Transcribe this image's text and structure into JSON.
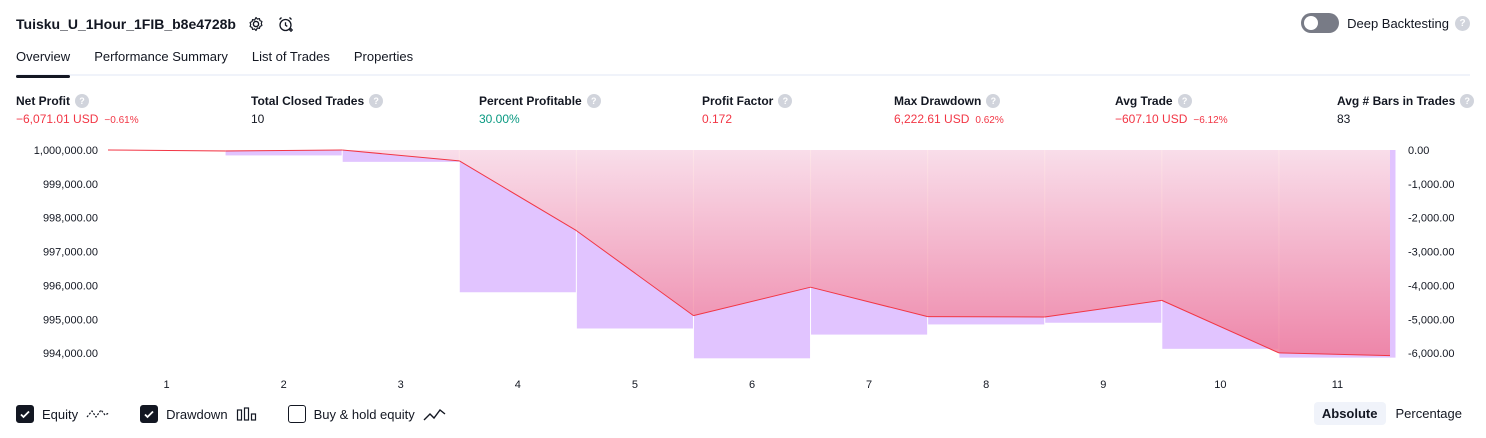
{
  "header": {
    "title": "Tuisku_U_1Hour_1FIB_b8e4728b",
    "settings_icon": "gear-icon",
    "alert_icon": "alarm-clock-plus-icon",
    "deep_backtesting_label": "Deep Backtesting",
    "deep_backtesting_on": false,
    "help_glyph": "?"
  },
  "tabs": [
    {
      "label": "Overview",
      "active": true
    },
    {
      "label": "Performance Summary",
      "active": false
    },
    {
      "label": "List of Trades",
      "active": false
    },
    {
      "label": "Properties",
      "active": false
    }
  ],
  "metrics": [
    {
      "label": "Net Profit",
      "value": "−6,071.01 USD",
      "sub": "−0.61%",
      "color": "neg"
    },
    {
      "label": "Total Closed Trades",
      "value": "10",
      "sub": "",
      "color": "neutral"
    },
    {
      "label": "Percent Profitable",
      "value": "30.00%",
      "sub": "",
      "color": "pos"
    },
    {
      "label": "Profit Factor",
      "value": "0.172",
      "sub": "",
      "color": "neg"
    },
    {
      "label": "Max Drawdown",
      "value": "6,222.61 USD",
      "sub": "0.62%",
      "color": "neg"
    },
    {
      "label": "Avg Trade",
      "value": "−607.10 USD",
      "sub": "−6.12%",
      "color": "neg"
    },
    {
      "label": "Avg # Bars in Trades",
      "value": "83",
      "sub": "",
      "color": "neutral"
    }
  ],
  "chart_data": {
    "type": "line",
    "x": [
      1,
      2,
      3,
      4,
      5,
      6,
      7,
      8,
      9,
      10,
      11
    ],
    "left_ticks": [
      "1,000,000.00",
      "999,000.00",
      "998,000.00",
      "997,000.00",
      "996,000.00",
      "995,000.00",
      "994,000.00"
    ],
    "right_ticks": [
      "0.00",
      "-1,000.00",
      "-2,000.00",
      "-3,000.00",
      "-4,000.00",
      "-5,000.00",
      "-6,000.00"
    ],
    "x_tick_labels": [
      "1",
      "2",
      "3",
      "4",
      "5",
      "6",
      "7",
      "8",
      "9",
      "10",
      "11"
    ],
    "left_ylim": [
      993800,
      1000000
    ],
    "right_ylim": [
      -6200,
      0
    ],
    "equity": {
      "start": 1000000,
      "values": [
        999970,
        1000000,
        999680,
        997620,
        995110,
        995950,
        995080,
        995070,
        995560,
        994010,
        993929
      ]
    },
    "drawdown": {
      "values": [
        0,
        -160,
        -350,
        -4200,
        -5270,
        -6150,
        -5450,
        -5150,
        -5100,
        -5870,
        -6130
      ]
    },
    "colors": {
      "equity_pos": "#089981",
      "equity_neg": "#f23645",
      "drawdown": "#e1c4ff",
      "fill_top": "#fde2e6",
      "fill_bottom": "#f07b9a"
    }
  },
  "legend": [
    {
      "label": "Equity",
      "checked": true,
      "icon": "equity-line-icon"
    },
    {
      "label": "Drawdown",
      "checked": true,
      "icon": "drawdown-bars-icon"
    },
    {
      "label": "Buy & hold equity",
      "checked": false,
      "icon": "buy-hold-line-icon"
    }
  ],
  "mode": {
    "absolute_label": "Absolute",
    "percentage_label": "Percentage",
    "active": "absolute"
  }
}
